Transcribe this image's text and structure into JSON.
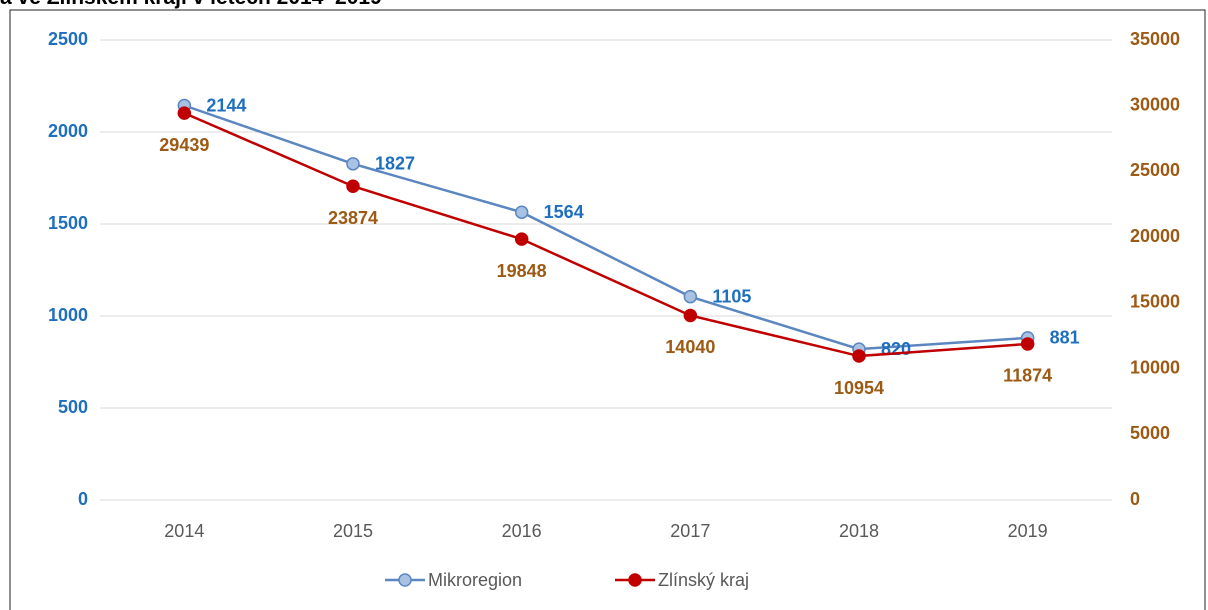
{
  "chart_data": {
    "type": "line",
    "title": "a ve Zlínském kraji v letech 2014–2019",
    "categories": [
      "2014",
      "2015",
      "2016",
      "2017",
      "2018",
      "2019"
    ],
    "series": [
      {
        "name": "Mikroregion",
        "color": "#5b86c0",
        "marker_fill": "#a9c2e3",
        "label_color": "#1f6fbf",
        "values": [
          2144,
          1827,
          1564,
          1105,
          820,
          881
        ]
      },
      {
        "name": "Zlínský kraj",
        "color": "#c00000",
        "marker_fill": "#c00000",
        "label_color": "#9c5a14",
        "axis": "y2",
        "values": [
          29439,
          23874,
          19848,
          14040,
          10954,
          11874
        ]
      }
    ],
    "ylim": [
      0,
      2500
    ],
    "yticks": [
      0,
      500,
      1000,
      1500,
      2000,
      2500
    ],
    "y2lim": [
      0,
      35000
    ],
    "y2ticks": [
      0,
      5000,
      10000,
      15000,
      20000,
      25000,
      30000,
      35000
    ],
    "grid": true,
    "legend": "bottom"
  }
}
